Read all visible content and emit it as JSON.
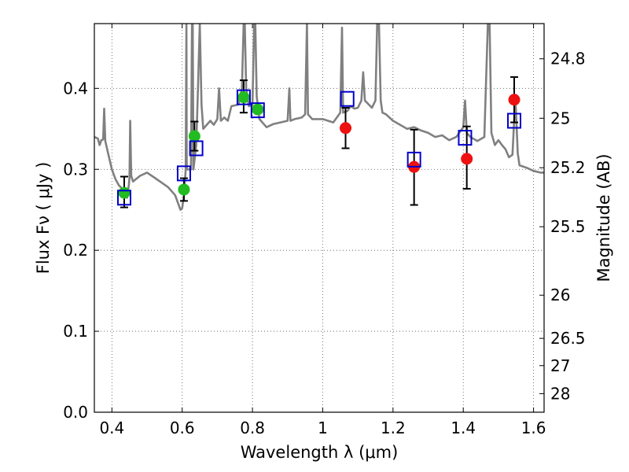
{
  "chart_data": {
    "type": "scatter",
    "xlabel": "Wavelength  λ (μm)",
    "ylabel": "Flux  Fν  ( μJy )",
    "ylabel_right": "Magnitude (AB)",
    "xlim": [
      0.35,
      1.63
    ],
    "ylim": [
      0.0,
      0.48
    ],
    "grid": true,
    "x_ticks": [
      {
        "value": 0.4,
        "label": "0.4"
      },
      {
        "value": 0.6,
        "label": "0.6"
      },
      {
        "value": 0.8,
        "label": "0.8"
      },
      {
        "value": 1.0,
        "label": "1"
      },
      {
        "value": 1.2,
        "label": "1.2"
      },
      {
        "value": 1.4,
        "label": "1.4"
      },
      {
        "value": 1.6,
        "label": "1.6"
      }
    ],
    "y_ticks": [
      {
        "value": 0.0,
        "label": "0.0"
      },
      {
        "value": 0.1,
        "label": "0.1"
      },
      {
        "value": 0.2,
        "label": "0.2"
      },
      {
        "value": 0.3,
        "label": "0.3"
      },
      {
        "value": 0.4,
        "label": "0.4"
      }
    ],
    "right_ticks": [
      {
        "label": "24.8",
        "value": 24.8
      },
      {
        "label": "25",
        "value": 25
      },
      {
        "label": "25.2",
        "value": 25.2
      },
      {
        "label": "25.5",
        "value": 25.5
      },
      {
        "label": "26",
        "value": 26
      },
      {
        "label": "26.5",
        "value": 26.5
      },
      {
        "label": "27",
        "value": 27
      },
      {
        "label": "28",
        "value": 28
      }
    ],
    "colors": {
      "spectrum": "#808080",
      "optical_points": "#22bb22",
      "nir_points": "#ee1111",
      "model_squares": "#0000cc",
      "errorbars": "#000000",
      "grid": "#555555"
    },
    "spectrum": [
      [
        0.35,
        0.34
      ],
      [
        0.36,
        0.338
      ],
      [
        0.365,
        0.33
      ],
      [
        0.37,
        0.336
      ],
      [
        0.375,
        0.337
      ],
      [
        0.378,
        0.375
      ],
      [
        0.381,
        0.335
      ],
      [
        0.39,
        0.318
      ],
      [
        0.4,
        0.3
      ],
      [
        0.41,
        0.288
      ],
      [
        0.42,
        0.28
      ],
      [
        0.43,
        0.276
      ],
      [
        0.44,
        0.268
      ],
      [
        0.443,
        0.265
      ],
      [
        0.448,
        0.28
      ],
      [
        0.45,
        0.29
      ],
      [
        0.452,
        0.36
      ],
      [
        0.455,
        0.292
      ],
      [
        0.46,
        0.285
      ],
      [
        0.48,
        0.292
      ],
      [
        0.5,
        0.296
      ],
      [
        0.52,
        0.29
      ],
      [
        0.54,
        0.284
      ],
      [
        0.56,
        0.278
      ],
      [
        0.58,
        0.268
      ],
      [
        0.595,
        0.25
      ],
      [
        0.6,
        0.252
      ],
      [
        0.605,
        0.268
      ],
      [
        0.61,
        0.3
      ],
      [
        0.612,
        0.48
      ],
      [
        0.613,
        0.3
      ],
      [
        0.62,
        0.3
      ],
      [
        0.625,
        0.3
      ],
      [
        0.628,
        0.48
      ],
      [
        0.63,
        0.48
      ],
      [
        0.632,
        0.3
      ],
      [
        0.64,
        0.33
      ],
      [
        0.645,
        0.4
      ],
      [
        0.65,
        0.48
      ],
      [
        0.655,
        0.38
      ],
      [
        0.66,
        0.35
      ],
      [
        0.67,
        0.355
      ],
      [
        0.68,
        0.36
      ],
      [
        0.69,
        0.355
      ],
      [
        0.7,
        0.362
      ],
      [
        0.705,
        0.4
      ],
      [
        0.71,
        0.36
      ],
      [
        0.72,
        0.364
      ],
      [
        0.73,
        0.36
      ],
      [
        0.74,
        0.378
      ],
      [
        0.76,
        0.38
      ],
      [
        0.77,
        0.4
      ],
      [
        0.775,
        0.48
      ],
      [
        0.778,
        0.48
      ],
      [
        0.782,
        0.4
      ],
      [
        0.79,
        0.378
      ],
      [
        0.8,
        0.38
      ],
      [
        0.805,
        0.48
      ],
      [
        0.808,
        0.48
      ],
      [
        0.812,
        0.39
      ],
      [
        0.82,
        0.362
      ],
      [
        0.84,
        0.352
      ],
      [
        0.86,
        0.356
      ],
      [
        0.88,
        0.358
      ],
      [
        0.9,
        0.36
      ],
      [
        0.905,
        0.4
      ],
      [
        0.908,
        0.36
      ],
      [
        0.92,
        0.362
      ],
      [
        0.94,
        0.364
      ],
      [
        0.95,
        0.368
      ],
      [
        0.955,
        0.48
      ],
      [
        0.958,
        0.368
      ],
      [
        0.97,
        0.362
      ],
      [
        1.0,
        0.362
      ],
      [
        1.03,
        0.358
      ],
      [
        1.05,
        0.37
      ],
      [
        1.055,
        0.475
      ],
      [
        1.058,
        0.37
      ],
      [
        1.07,
        0.372
      ],
      [
        1.08,
        0.378
      ],
      [
        1.09,
        0.375
      ],
      [
        1.1,
        0.376
      ],
      [
        1.11,
        0.385
      ],
      [
        1.115,
        0.42
      ],
      [
        1.12,
        0.385
      ],
      [
        1.14,
        0.376
      ],
      [
        1.15,
        0.385
      ],
      [
        1.155,
        0.48
      ],
      [
        1.16,
        0.48
      ],
      [
        1.165,
        0.385
      ],
      [
        1.17,
        0.37
      ],
      [
        1.18,
        0.368
      ],
      [
        1.2,
        0.36
      ],
      [
        1.22,
        0.355
      ],
      [
        1.24,
        0.35
      ],
      [
        1.26,
        0.352
      ],
      [
        1.28,
        0.348
      ],
      [
        1.3,
        0.345
      ],
      [
        1.32,
        0.34
      ],
      [
        1.34,
        0.342
      ],
      [
        1.36,
        0.336
      ],
      [
        1.38,
        0.34
      ],
      [
        1.4,
        0.352
      ],
      [
        1.405,
        0.385
      ],
      [
        1.41,
        0.345
      ],
      [
        1.42,
        0.34
      ],
      [
        1.44,
        0.335
      ],
      [
        1.46,
        0.34
      ],
      [
        1.47,
        0.48
      ],
      [
        1.475,
        0.48
      ],
      [
        1.48,
        0.345
      ],
      [
        1.49,
        0.33
      ],
      [
        1.5,
        0.336
      ],
      [
        1.51,
        0.33
      ],
      [
        1.52,
        0.325
      ],
      [
        1.53,
        0.315
      ],
      [
        1.54,
        0.318
      ],
      [
        1.548,
        0.39
      ],
      [
        1.555,
        0.32
      ],
      [
        1.56,
        0.305
      ],
      [
        1.58,
        0.302
      ],
      [
        1.6,
        0.298
      ],
      [
        1.62,
        0.296
      ],
      [
        1.63,
        0.296
      ]
    ],
    "series": [
      {
        "marker": "circle",
        "color": "optical_points",
        "points": [
          {
            "x": 0.435,
            "y": 0.271,
            "err": [
              0.253,
              0.291
            ]
          },
          {
            "x": 0.605,
            "y": 0.275,
            "err": [
              0.261,
              0.289
            ]
          },
          {
            "x": 0.635,
            "y": 0.341,
            "err": [
              0.323,
              0.359
            ]
          },
          {
            "x": 0.775,
            "y": 0.389,
            "err": [
              0.37,
              0.41
            ]
          },
          {
            "x": 0.815,
            "y": 0.374
          }
        ]
      },
      {
        "marker": "circle",
        "color": "nir_points",
        "points": [
          {
            "x": 1.065,
            "y": 0.351,
            "err": [
              0.326,
              0.376
            ]
          },
          {
            "x": 1.26,
            "y": 0.303,
            "err": [
              0.256,
              0.349
            ]
          },
          {
            "x": 1.41,
            "y": 0.313,
            "err": [
              0.276,
              0.353
            ]
          },
          {
            "x": 1.545,
            "y": 0.386,
            "err": [
              0.358,
              0.414
            ]
          }
        ]
      },
      {
        "marker": "square",
        "color": "model_squares",
        "points": [
          {
            "x": 0.435,
            "y": 0.265
          },
          {
            "x": 0.605,
            "y": 0.295
          },
          {
            "x": 0.64,
            "y": 0.326
          },
          {
            "x": 0.775,
            "y": 0.389
          },
          {
            "x": 0.815,
            "y": 0.373
          },
          {
            "x": 1.07,
            "y": 0.387
          },
          {
            "x": 1.26,
            "y": 0.312
          },
          {
            "x": 1.405,
            "y": 0.339
          },
          {
            "x": 1.545,
            "y": 0.36
          }
        ]
      }
    ]
  }
}
